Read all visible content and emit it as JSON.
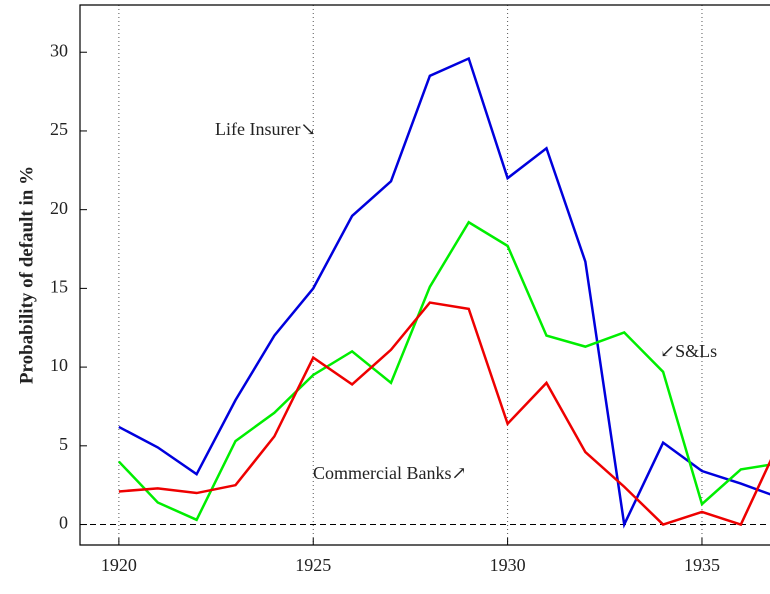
{
  "chart_data": {
    "type": "line",
    "y_label": "Probability of default in %",
    "x": [
      1920,
      1921,
      1922,
      1923,
      1924,
      1925,
      1926,
      1927,
      1928,
      1929,
      1930,
      1931,
      1932,
      1933,
      1934,
      1935,
      1936,
      1937
    ],
    "series": [
      {
        "name": "Life Insurer↘",
        "color": "#0000dd",
        "values": [
          6.2,
          4.9,
          3.2,
          7.9,
          12,
          15,
          19.6,
          21.8,
          28.5,
          29.6,
          22,
          23.9,
          16.7,
          0,
          5.2,
          3.4,
          2.6,
          1.7
        ]
      },
      {
        "name": "↙S&Ls",
        "color": "#00ee00",
        "values": [
          4.0,
          1.4,
          0.3,
          5.3,
          7.1,
          9.5,
          11.0,
          9.0,
          15.1,
          19.2,
          17.7,
          12.0,
          11.3,
          12.2,
          9.7,
          1.3,
          3.5,
          3.9
        ]
      },
      {
        "name": "Commercial Banks↗",
        "color": "#ee0000",
        "values": [
          2.1,
          2.3,
          2.0,
          2.5,
          5.6,
          10.6,
          8.9,
          11.1,
          14.1,
          13.7,
          6.4,
          9.0,
          4.6,
          2.4,
          0,
          0.8,
          0,
          5.3
        ]
      }
    ],
    "xlim": [
      1919,
      1936.75
    ],
    "xticks": [
      1920,
      1925,
      1930,
      1935
    ],
    "ylim": [
      -1.3,
      33
    ],
    "yticks": [
      0,
      5,
      10,
      15,
      20,
      25,
      30
    ],
    "grid": "x",
    "zero_line": true
  }
}
